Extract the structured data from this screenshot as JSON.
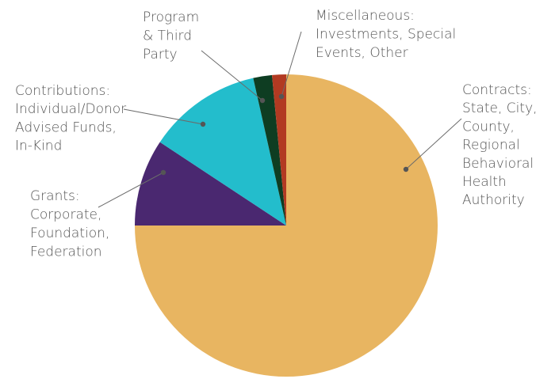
{
  "chart_data": {
    "type": "pie",
    "title": "",
    "start_angle_deg": 0,
    "direction": "clockwise",
    "legend": "none",
    "slices": [
      {
        "name": "Contracts",
        "label_lines": [
          "Contracts:",
          "State, City,",
          "County,",
          "Regional",
          "Behavioral",
          "Health",
          "Authority"
        ],
        "value": 75.0,
        "color": "#E8B561"
      },
      {
        "name": "Grants",
        "label_lines": [
          "Grants:",
          "Corporate,",
          "Foundation,",
          "Federation"
        ],
        "value": 9.3,
        "color": "#4A2870"
      },
      {
        "name": "Contributions",
        "label_lines": [
          "Contributions:",
          "Individual/Donor",
          "Advised Funds,",
          "In-Kind"
        ],
        "value": 12.2,
        "color": "#23BDCC"
      },
      {
        "name": "Program & Third Party",
        "label_lines": [
          "Program",
          "& Third",
          "Party"
        ],
        "value": 2.0,
        "color": "#0E3D22"
      },
      {
        "name": "Miscellaneous",
        "label_lines": [
          "Miscellaneous:",
          "Investments, Special",
          "Events, Other"
        ],
        "value": 1.5,
        "color": "#B23A22"
      }
    ]
  }
}
